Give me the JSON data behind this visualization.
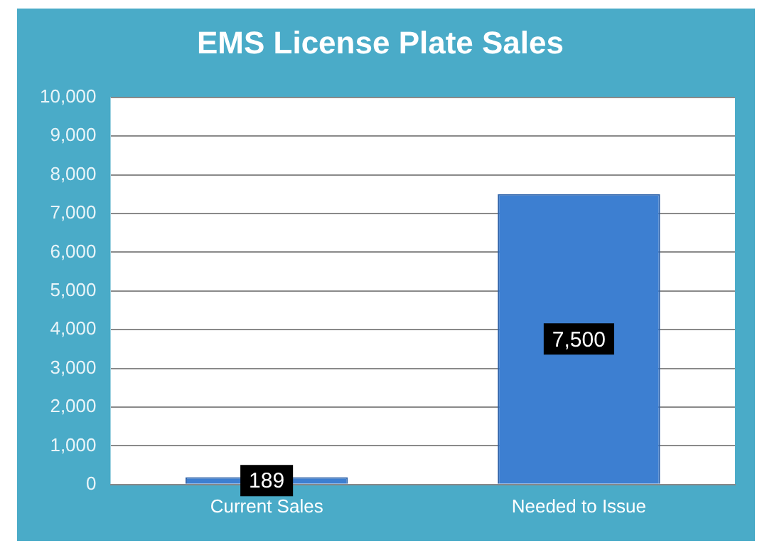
{
  "chart_data": {
    "type": "bar",
    "title": "EMS License Plate Sales",
    "categories": [
      "Current Sales",
      "Needed to Issue"
    ],
    "values": [
      189,
      7500
    ],
    "value_labels": [
      "189",
      "7,500"
    ],
    "color": "#3d7fd1",
    "ylim": [
      0,
      10000
    ],
    "yticks": [
      {
        "value": 0,
        "label": "0"
      },
      {
        "value": 1000,
        "label": "1,000"
      },
      {
        "value": 2000,
        "label": "2,000"
      },
      {
        "value": 3000,
        "label": "3,000"
      },
      {
        "value": 4000,
        "label": "4,000"
      },
      {
        "value": 5000,
        "label": "5,000"
      },
      {
        "value": 6000,
        "label": "6,000"
      },
      {
        "value": 7000,
        "label": "7,000"
      },
      {
        "value": 8000,
        "label": "8,000"
      },
      {
        "value": 9000,
        "label": "9,000"
      },
      {
        "value": 10000,
        "label": "10,000"
      }
    ],
    "grid": "y"
  }
}
